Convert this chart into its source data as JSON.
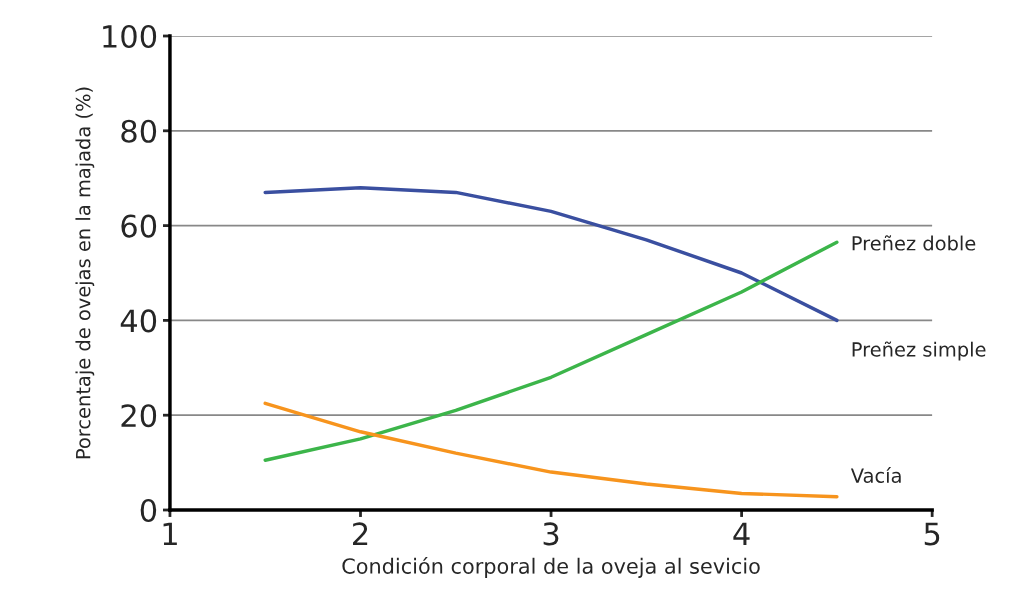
{
  "chart_data": {
    "type": "line",
    "xlabel": "Condición corporal de la oveja al sevicio",
    "ylabel": "Porcentaje de ovejas en la majada (%)",
    "x": [
      1.5,
      2,
      2.5,
      3,
      3.5,
      4,
      4.5
    ],
    "series": [
      {
        "name": "Preñez simple",
        "color": "#3a4fa0",
        "values": [
          67,
          68,
          67,
          63,
          57,
          50,
          40
        ]
      },
      {
        "name": "Preñez doble",
        "color": "#3cb54a",
        "values": [
          10.5,
          15,
          21,
          28,
          37,
          46,
          56.5
        ]
      },
      {
        "name": "Vacía",
        "color": "#f7941d",
        "values": [
          22.5,
          16.5,
          12,
          8,
          5.5,
          3.5,
          2.8
        ]
      }
    ],
    "xlim": [
      1,
      5
    ],
    "xticks": [
      1,
      2,
      3,
      4,
      5
    ],
    "ylim": [
      0,
      100
    ],
    "yticks": [
      0,
      20,
      40,
      60,
      80,
      100
    ],
    "grid": "y",
    "legend": false
  }
}
